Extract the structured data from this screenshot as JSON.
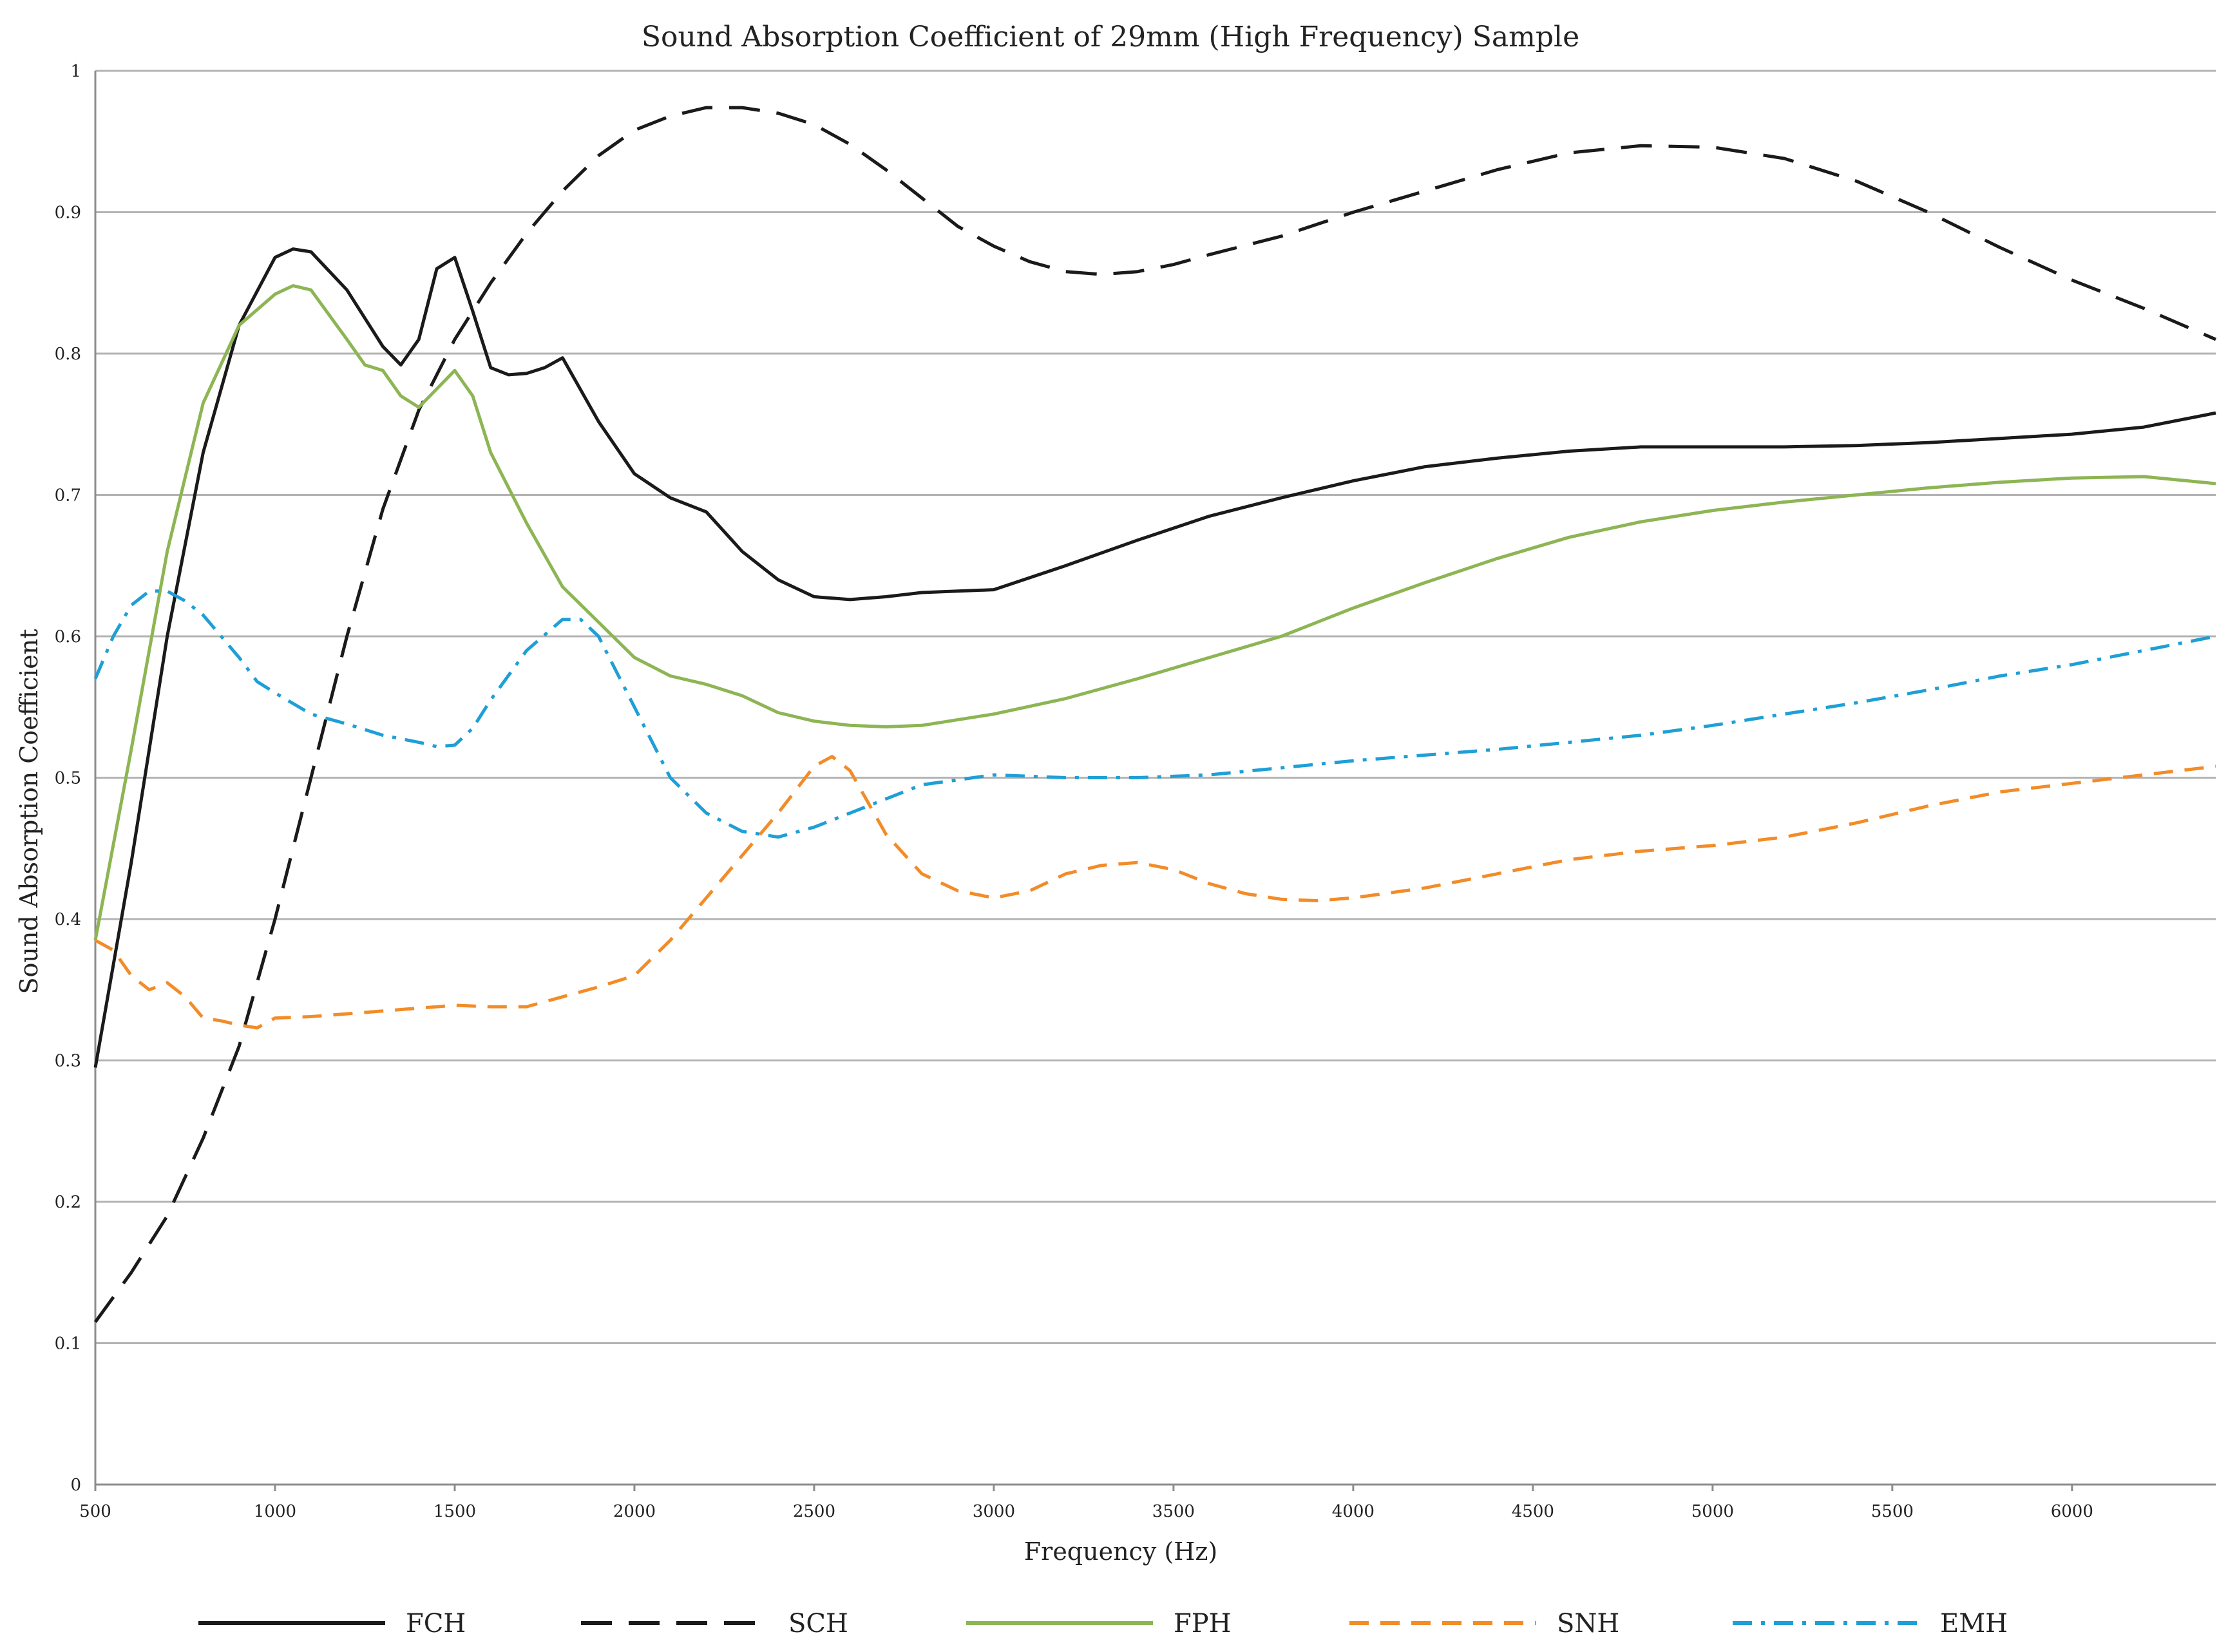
{
  "chart_data": {
    "type": "line",
    "title": "Sound Absorption Coefficient of 29mm (High Frequency) Sample",
    "xlabel": "Frequency (Hz)",
    "ylabel": "Sound Absorption Coefficient",
    "xlim": [
      500,
      6400
    ],
    "ylim": [
      0,
      1
    ],
    "grid": true,
    "legend_position": "bottom",
    "x_ticks": [
      500,
      1000,
      1500,
      2000,
      2500,
      3000,
      3500,
      4000,
      4500,
      5000,
      5500,
      6000
    ],
    "x_tick_labels": [
      "500",
      "1000",
      "1500",
      "2000",
      "2500",
      "3000",
      "3500",
      "4000",
      "4500",
      "5000",
      "5500",
      "6000"
    ],
    "y_ticks": [
      0,
      0.1,
      0.2,
      0.3,
      0.4,
      0.5,
      0.6,
      0.7,
      0.8,
      0.9,
      1
    ],
    "y_tick_labels": [
      "0",
      "0.1",
      "0.2",
      "0.3",
      "0.4",
      "0.5",
      "0.6",
      "0.7",
      "0.8",
      "0.9",
      "1"
    ],
    "series": [
      {
        "name": "FCH",
        "color": "#1a1a1a",
        "dash": "solid",
        "x": [
          500,
          600,
          700,
          800,
          900,
          1000,
          1050,
          1100,
          1200,
          1300,
          1350,
          1400,
          1450,
          1500,
          1550,
          1600,
          1650,
          1700,
          1750,
          1800,
          1900,
          2000,
          2100,
          2200,
          2300,
          2400,
          2500,
          2600,
          2700,
          2800,
          3000,
          3200,
          3400,
          3600,
          3800,
          4000,
          4200,
          4400,
          4600,
          4800,
          5000,
          5200,
          5400,
          5600,
          5800,
          6000,
          6200,
          6400
        ],
        "y": [
          0.295,
          0.44,
          0.6,
          0.73,
          0.82,
          0.868,
          0.874,
          0.872,
          0.845,
          0.805,
          0.792,
          0.81,
          0.86,
          0.868,
          0.83,
          0.79,
          0.785,
          0.786,
          0.79,
          0.797,
          0.752,
          0.715,
          0.698,
          0.688,
          0.66,
          0.64,
          0.628,
          0.626,
          0.628,
          0.631,
          0.633,
          0.65,
          0.668,
          0.685,
          0.698,
          0.71,
          0.72,
          0.726,
          0.731,
          0.734,
          0.734,
          0.734,
          0.735,
          0.737,
          0.74,
          0.743,
          0.748,
          0.758
        ]
      },
      {
        "name": "SCH",
        "color": "#1a1a1a",
        "dash": "long-dash",
        "x": [
          500,
          600,
          700,
          800,
          900,
          1000,
          1100,
          1200,
          1300,
          1400,
          1500,
          1600,
          1700,
          1800,
          1900,
          2000,
          2100,
          2200,
          2300,
          2400,
          2500,
          2600,
          2700,
          2800,
          2900,
          3000,
          3100,
          3200,
          3300,
          3400,
          3500,
          3600,
          3800,
          4000,
          4200,
          4400,
          4600,
          4800,
          5000,
          5200,
          5400,
          5600,
          5800,
          6000,
          6200,
          6400
        ],
        "y": [
          0.115,
          0.15,
          0.19,
          0.245,
          0.31,
          0.4,
          0.5,
          0.6,
          0.69,
          0.76,
          0.81,
          0.85,
          0.885,
          0.915,
          0.94,
          0.958,
          0.968,
          0.974,
          0.974,
          0.97,
          0.962,
          0.948,
          0.93,
          0.91,
          0.89,
          0.876,
          0.865,
          0.858,
          0.856,
          0.858,
          0.863,
          0.87,
          0.883,
          0.9,
          0.915,
          0.93,
          0.942,
          0.947,
          0.946,
          0.938,
          0.922,
          0.9,
          0.875,
          0.852,
          0.832,
          0.81
        ]
      },
      {
        "name": "FPH",
        "color": "#8db554",
        "dash": "solid",
        "x": [
          500,
          600,
          700,
          800,
          900,
          1000,
          1050,
          1100,
          1200,
          1250,
          1300,
          1350,
          1400,
          1450,
          1500,
          1550,
          1600,
          1700,
          1800,
          1900,
          2000,
          2100,
          2200,
          2300,
          2400,
          2500,
          2600,
          2700,
          2800,
          3000,
          3200,
          3400,
          3600,
          3800,
          4000,
          4200,
          4400,
          4600,
          4800,
          5000,
          5200,
          5400,
          5600,
          5800,
          6000,
          6200,
          6400
        ],
        "y": [
          0.385,
          0.52,
          0.66,
          0.765,
          0.82,
          0.842,
          0.848,
          0.845,
          0.81,
          0.792,
          0.788,
          0.77,
          0.762,
          0.775,
          0.788,
          0.77,
          0.73,
          0.68,
          0.635,
          0.61,
          0.585,
          0.572,
          0.566,
          0.558,
          0.546,
          0.54,
          0.537,
          0.536,
          0.537,
          0.545,
          0.556,
          0.57,
          0.585,
          0.6,
          0.62,
          0.638,
          0.655,
          0.67,
          0.681,
          0.689,
          0.695,
          0.7,
          0.705,
          0.709,
          0.712,
          0.713,
          0.708
        ]
      },
      {
        "name": "SNH",
        "color": "#f28c28",
        "dash": "dash",
        "x": [
          500,
          550,
          600,
          650,
          700,
          750,
          800,
          850,
          900,
          950,
          1000,
          1100,
          1200,
          1300,
          1400,
          1500,
          1600,
          1700,
          1800,
          1900,
          2000,
          2100,
          2200,
          2300,
          2400,
          2500,
          2550,
          2600,
          2700,
          2800,
          2900,
          3000,
          3100,
          3200,
          3300,
          3400,
          3500,
          3600,
          3700,
          3800,
          3900,
          4000,
          4200,
          4400,
          4600,
          4800,
          5000,
          5200,
          5400,
          5600,
          5800,
          6000,
          6200,
          6400
        ],
        "y": [
          0.385,
          0.378,
          0.36,
          0.35,
          0.355,
          0.345,
          0.33,
          0.328,
          0.325,
          0.323,
          0.33,
          0.331,
          0.333,
          0.335,
          0.337,
          0.339,
          0.338,
          0.338,
          0.345,
          0.352,
          0.36,
          0.385,
          0.415,
          0.445,
          0.475,
          0.508,
          0.515,
          0.505,
          0.46,
          0.432,
          0.42,
          0.415,
          0.42,
          0.432,
          0.438,
          0.44,
          0.435,
          0.425,
          0.418,
          0.414,
          0.413,
          0.415,
          0.422,
          0.432,
          0.442,
          0.448,
          0.452,
          0.458,
          0.468,
          0.48,
          0.49,
          0.496,
          0.502,
          0.508
        ]
      },
      {
        "name": "EMH",
        "color": "#1e9fd6",
        "dash": "dash-dot",
        "x": [
          500,
          550,
          600,
          650,
          700,
          750,
          800,
          850,
          900,
          950,
          1000,
          1100,
          1200,
          1300,
          1400,
          1450,
          1500,
          1550,
          1600,
          1700,
          1800,
          1850,
          1900,
          2000,
          2100,
          2200,
          2300,
          2400,
          2500,
          2600,
          2700,
          2800,
          3000,
          3200,
          3400,
          3600,
          3800,
          4000,
          4200,
          4400,
          4600,
          4800,
          5000,
          5200,
          5400,
          5600,
          5800,
          6000,
          6200,
          6400
        ],
        "y": [
          0.57,
          0.6,
          0.622,
          0.632,
          0.632,
          0.625,
          0.615,
          0.6,
          0.585,
          0.568,
          0.56,
          0.545,
          0.538,
          0.53,
          0.525,
          0.522,
          0.523,
          0.535,
          0.555,
          0.59,
          0.612,
          0.612,
          0.6,
          0.55,
          0.5,
          0.475,
          0.462,
          0.458,
          0.465,
          0.475,
          0.485,
          0.495,
          0.502,
          0.5,
          0.5,
          0.502,
          0.507,
          0.512,
          0.516,
          0.52,
          0.525,
          0.53,
          0.537,
          0.545,
          0.553,
          0.562,
          0.572,
          0.58,
          0.59,
          0.6
        ]
      }
    ]
  }
}
